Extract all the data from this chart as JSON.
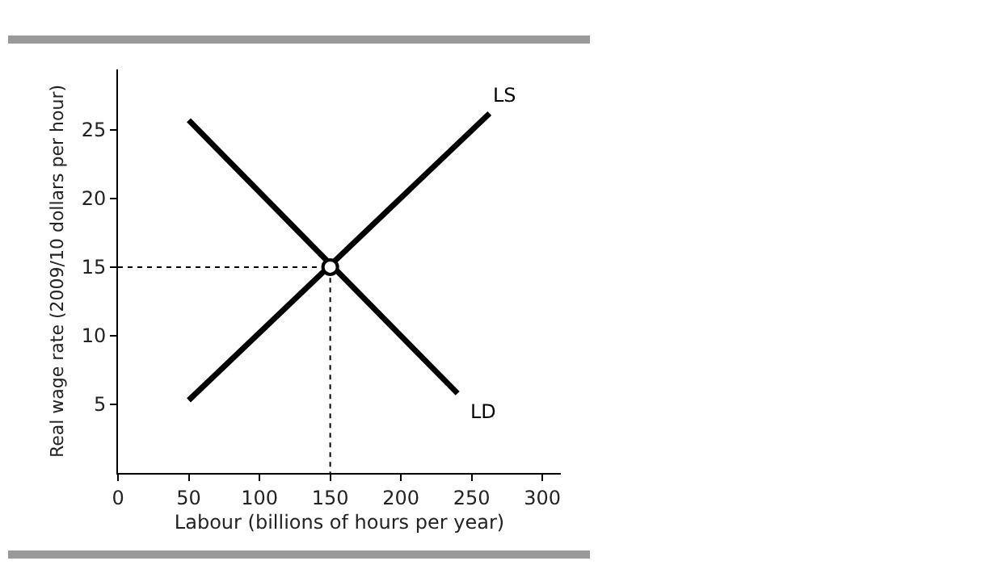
{
  "chart_data": {
    "type": "line",
    "xlabel": "Labour (billions of hours per year)",
    "ylabel": "Real wage rate (2009/10 dollars per hour)",
    "xlim": [
      0,
      313
    ],
    "ylim": [
      0,
      29.4
    ],
    "xticks": [
      0,
      50,
      100,
      150,
      200,
      250,
      300
    ],
    "yticks": [
      5,
      10,
      15,
      20,
      25
    ],
    "grid": false,
    "series": [
      {
        "name": "LD",
        "color": "#000000",
        "x": [
          50,
          240
        ],
        "values": [
          25.7,
          5.8
        ]
      },
      {
        "name": "LS",
        "color": "#000000",
        "x": [
          50,
          262.6
        ],
        "values": [
          5.3,
          26.2
        ]
      },
      {
        "color": "#000000",
        "line_style": "dotted",
        "x": [
          0,
          150,
          150
        ],
        "values": [
          15,
          15,
          0
        ]
      },
      {
        "type": "scatter",
        "marker": "circle",
        "color": "#000000",
        "x": [
          150
        ],
        "values": [
          15
        ]
      }
    ]
  }
}
